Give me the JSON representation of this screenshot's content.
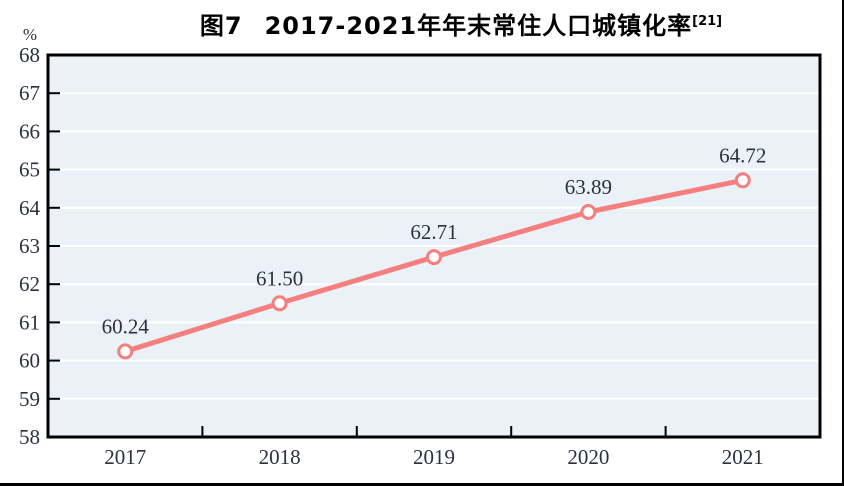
{
  "figure": {
    "title_prefix": "图7",
    "title_main": "2017-2021年年末常住人口城镇化率",
    "title_superscript": "[21]",
    "unit_label": "%"
  },
  "chart_data": {
    "type": "line",
    "title": "图7 2017-2021年年末常住人口城镇化率[21]",
    "categories": [
      "2017",
      "2018",
      "2019",
      "2020",
      "2021"
    ],
    "series": [
      {
        "name": "年末常住人口城镇化率",
        "values": [
          60.24,
          61.5,
          62.71,
          63.89,
          64.72
        ]
      }
    ],
    "data_labels": [
      "60.24",
      "61.50",
      "62.71",
      "63.89",
      "64.72"
    ],
    "xlabel": "",
    "ylabel": "%",
    "ylim": [
      58,
      68
    ],
    "ytick_step": 1,
    "yticks": [
      58,
      59,
      60,
      61,
      62,
      63,
      64,
      65,
      66,
      67,
      68
    ],
    "grid": true,
    "legend_position": "none"
  },
  "style": {
    "line_color": "#f57f7f",
    "marker_fill": "#ffffff",
    "marker_stroke": "#f57f7f",
    "plot_bg": "#eaf2f8",
    "gridline_color": "#ffffff",
    "axis_color": "#000000",
    "label_color": "#2b3140",
    "title_color": "#000000",
    "frame_border_color": "#000000"
  }
}
